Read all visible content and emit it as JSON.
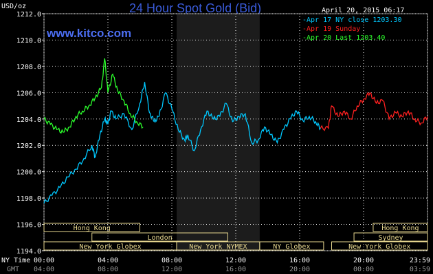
{
  "header": {
    "unit": "USD/oz",
    "title": "24 Hour Spot Gold (Bid)",
    "date": "April 20, 2015 06:17",
    "site": "www.kitco.com"
  },
  "colors": {
    "cyan": "#00c8ff",
    "red": "#ff2020",
    "green": "#2cff2c",
    "grid": "#ffffff",
    "session": "#e8d890",
    "shade": "#1c1c1c"
  },
  "chart_data": {
    "type": "line",
    "title": "24 Hour Spot Gold (Bid)",
    "ylabel": "USD/oz",
    "ylim": [
      1194,
      1212
    ],
    "y_ticks": [
      "1212.0",
      "1210.0",
      "1208.0",
      "1206.0",
      "1204.0",
      "1202.0",
      "1200.0",
      "1198.0",
      "1196.0",
      "1194.0"
    ],
    "x_range_hours": [
      0,
      24
    ],
    "x_tick_labels_ny": [
      "00:00",
      "04:00",
      "08:00",
      "12:00",
      "16:00",
      "20:00",
      "23:59"
    ],
    "x_tick_labels_gmt": [
      "04:00",
      "08:00",
      "12:00",
      "16:00",
      "20:00",
      "00:00",
      "03:59"
    ],
    "x_row_labels": [
      "NY Time",
      "GMT"
    ],
    "shaded_hours": [
      8.3,
      13.5
    ],
    "legend": [
      {
        "label": "Apr 17 NY close 1203.30",
        "color": "#00c8ff"
      },
      {
        "label": "Apr 19 Sunday",
        "color": "#ff2020"
      },
      {
        "label": "Apr 20 Last 1203.40",
        "color": "#2cff2c"
      }
    ],
    "series": [
      {
        "name": "Apr 17 NY close 1203.30",
        "color": "#00c8ff",
        "x": [
          0,
          0.5,
          1.0,
          1.5,
          2.0,
          2.5,
          3.0,
          3.2,
          3.5,
          3.8,
          4.0,
          4.2,
          4.5,
          5.0,
          5.5,
          6.0,
          6.3,
          6.6,
          6.9,
          7.2,
          7.6,
          8.0,
          8.4,
          8.8,
          9.0,
          9.4,
          9.8,
          10.2,
          10.6,
          11.0,
          11.4,
          11.8,
          12.2,
          12.6,
          13.0,
          13.4,
          13.8,
          14.2,
          14.6,
          15.0,
          15.4,
          15.8,
          16.2,
          16.6,
          17.0,
          17.3
        ],
        "y": [
          1197.6,
          1198.2,
          1198.8,
          1199.6,
          1200.2,
          1201.0,
          1202.0,
          1201.1,
          1202.8,
          1204.0,
          1203.6,
          1204.6,
          1204.0,
          1204.4,
          1203.2,
          1205.2,
          1206.8,
          1204.5,
          1203.8,
          1204.2,
          1206.0,
          1204.8,
          1203.2,
          1202.4,
          1202.8,
          1201.6,
          1203.2,
          1204.6,
          1204.0,
          1204.2,
          1205.2,
          1203.8,
          1204.2,
          1204.4,
          1202.2,
          1202.4,
          1203.4,
          1202.8,
          1202.2,
          1203.2,
          1204.0,
          1204.6,
          1203.9,
          1204.2,
          1203.8,
          1203.3
        ]
      },
      {
        "name": "Apr 19 Sunday",
        "color": "#ff2020",
        "x": [
          17.3,
          17.8,
          18.0,
          18.4,
          18.8,
          19.2,
          19.6,
          20.0,
          20.4,
          20.8,
          21.2,
          21.6,
          22.0,
          22.4,
          22.8,
          23.2,
          23.6,
          24.0
        ],
        "y": [
          1203.3,
          1203.3,
          1205.0,
          1204.2,
          1204.6,
          1204.0,
          1205.0,
          1205.5,
          1206.0,
          1205.2,
          1205.4,
          1204.0,
          1204.5,
          1204.2,
          1204.6,
          1204.0,
          1203.7,
          1204.2
        ]
      },
      {
        "name": "Apr 20 Last 1203.40",
        "color": "#2cff2c",
        "x": [
          0,
          0.4,
          0.8,
          1.2,
          1.6,
          2.0,
          2.4,
          2.8,
          3.2,
          3.6,
          3.8,
          4.0,
          4.3,
          4.6,
          5.0,
          5.4,
          5.8,
          6.2
        ],
        "y": [
          1204.0,
          1203.6,
          1203.2,
          1203.0,
          1203.4,
          1204.2,
          1204.6,
          1205.0,
          1205.6,
          1206.4,
          1208.6,
          1206.0,
          1207.4,
          1206.2,
          1205.4,
          1204.4,
          1203.8,
          1203.4
        ]
      }
    ],
    "sessions": [
      {
        "label": "Hong Kong",
        "row": 0,
        "from": 0,
        "to": 6.0
      },
      {
        "label": "London",
        "row": 1,
        "from": 3.0,
        "to": 11.5
      },
      {
        "label": "New York Globex",
        "row": 2,
        "from": 0,
        "to": 8.3
      },
      {
        "label": "New York NYMEX",
        "row": 2,
        "from": 8.3,
        "to": 13.5
      },
      {
        "label": "NY Globex",
        "row": 2,
        "from": 13.5,
        "to": 17.5
      },
      {
        "label": "Hong Kong",
        "row": 0,
        "from": 20.6,
        "to": 24.0
      },
      {
        "label": "Sydney",
        "row": 1,
        "from": 19.4,
        "to": 24.0
      },
      {
        "label": "New York Globex",
        "row": 2,
        "from": 18.0,
        "to": 24.0
      }
    ]
  }
}
